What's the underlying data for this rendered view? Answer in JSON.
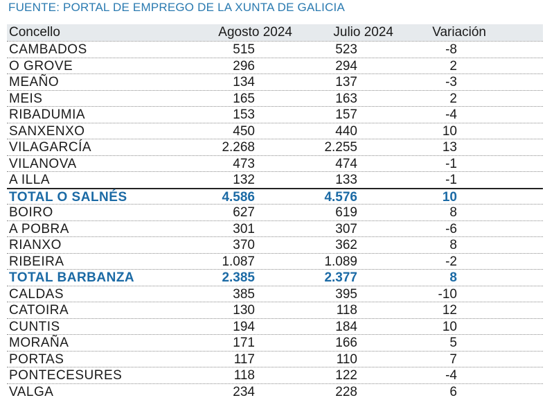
{
  "source": "FUENTE: PORTAL DE EMPREGO DE LA XUNTA DE GALICIA",
  "headers": {
    "concello": "Concello",
    "agosto": "Agosto 2024",
    "julio": "Julio 2024",
    "variacion": "Variación"
  },
  "rows": [
    {
      "name": "CAMBADOS",
      "agosto": "515",
      "julio": "523",
      "variacion": "-8"
    },
    {
      "name": "O GROVE",
      "agosto": "296",
      "julio": "294",
      "variacion": "2"
    },
    {
      "name": "MEAÑO",
      "agosto": "134",
      "julio": "137",
      "variacion": "-3"
    },
    {
      "name": "MEIS",
      "agosto": "165",
      "julio": "163",
      "variacion": "2"
    },
    {
      "name": "RIBADUMIA",
      "agosto": "153",
      "julio": "157",
      "variacion": "-4"
    },
    {
      "name": "SANXENXO",
      "agosto": "450",
      "julio": "440",
      "variacion": "10"
    },
    {
      "name": "VILAGARCÍA",
      "agosto": "2.268",
      "julio": "2.255",
      "variacion": "13"
    },
    {
      "name": "VILANOVA",
      "agosto": "473",
      "julio": "474",
      "variacion": "-1"
    },
    {
      "name": "A ILLA",
      "agosto": "132",
      "julio": "133",
      "variacion": "-1"
    },
    {
      "name": "TOTAL O SALNÉS",
      "agosto": "4.586",
      "julio": "4.576",
      "variacion": "10",
      "total": true
    },
    {
      "name": "BOIRO",
      "agosto": "627",
      "julio": "619",
      "variacion": "8"
    },
    {
      "name": "A POBRA",
      "agosto": "301",
      "julio": "307",
      "variacion": "-6"
    },
    {
      "name": "RIANXO",
      "agosto": "370",
      "julio": "362",
      "variacion": "8"
    },
    {
      "name": "RIBEIRA",
      "agosto": "1.087",
      "julio": "1.089",
      "variacion": "-2"
    },
    {
      "name": "TOTAL BARBANZA",
      "agosto": "2.385",
      "julio": "2.377",
      "variacion": "8",
      "total": true
    },
    {
      "name": "CALDAS",
      "agosto": "385",
      "julio": "395",
      "variacion": "-10"
    },
    {
      "name": "CATOIRA",
      "agosto": "130",
      "julio": "118",
      "variacion": "12"
    },
    {
      "name": "CUNTIS",
      "agosto": "194",
      "julio": "184",
      "variacion": "10"
    },
    {
      "name": "MORAÑA",
      "agosto": "171",
      "julio": "166",
      "variacion": "5"
    },
    {
      "name": "PORTAS",
      "agosto": "117",
      "julio": "110",
      "variacion": "7"
    },
    {
      "name": "PONTECESURES",
      "agosto": "118",
      "julio": "122",
      "variacion": "-4"
    },
    {
      "name": "VALGA",
      "agosto": "234",
      "julio": "228",
      "variacion": "6"
    }
  ],
  "colors": {
    "source_text": "#2a7ab0",
    "total_text": "#1b6aa5",
    "header_bg": "#e6eaed"
  }
}
